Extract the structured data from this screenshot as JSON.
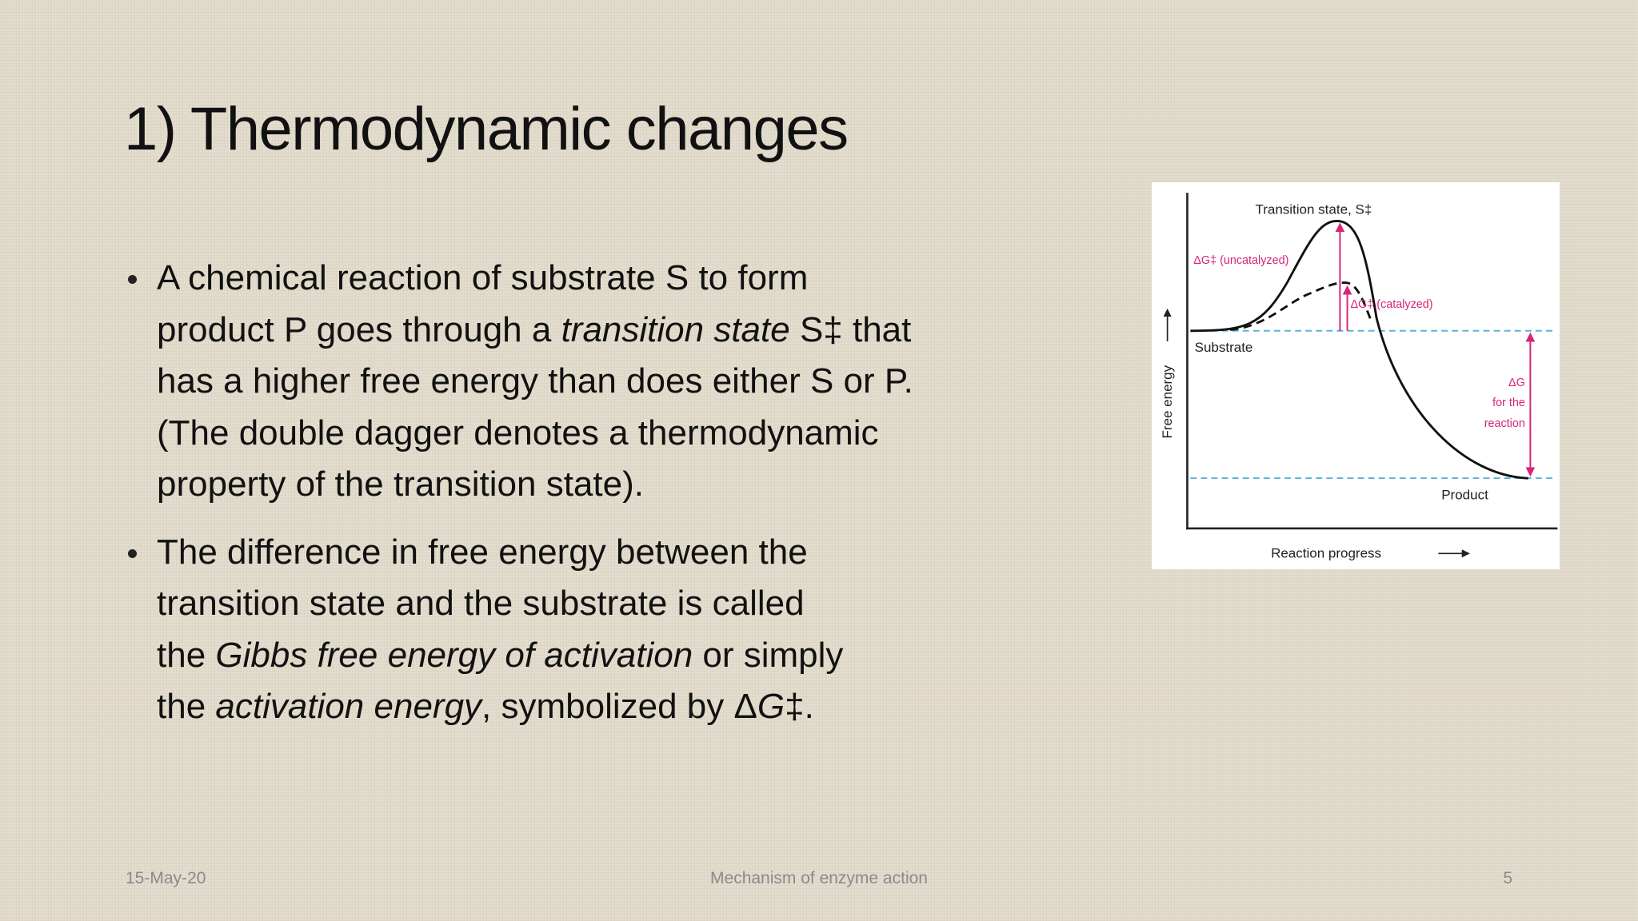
{
  "title": "1) Thermodynamic changes",
  "bullets": [
    {
      "lines": [
        [
          {
            "text": "A chemical reaction of substrate S to form"
          }
        ],
        [
          {
            "text": "product P goes through a "
          },
          {
            "text": "transition state",
            "italic": true
          },
          {
            "text": " S‡ that"
          }
        ],
        [
          {
            "text": "has a higher free energy than does either S or P."
          }
        ],
        [
          {
            "text": "(The double dagger denotes a thermodynamic"
          }
        ],
        [
          {
            "text": "property of the transition state)."
          }
        ]
      ]
    },
    {
      "lines": [
        [
          {
            "text": "The difference in free energy between the"
          }
        ],
        [
          {
            "text": "transition state and the substrate is called"
          }
        ],
        [
          {
            "text": "the "
          },
          {
            "text": "Gibbs free energy of activation",
            "italic": true
          },
          {
            "text": " or simply"
          }
        ],
        [
          {
            "text": "the "
          },
          {
            "text": "activation energy",
            "italic": true
          },
          {
            "text": ", symbolized by Δ"
          },
          {
            "text": "G",
            "italic": true
          },
          {
            "text": "‡."
          }
        ]
      ]
    }
  ],
  "figure": {
    "transition_state": "Transition state, S‡",
    "uncatalyzed": "ΔG‡ (uncatalyzed)",
    "catalyzed": "ΔG‡ (catalyzed)",
    "substrate": "Substrate",
    "y_axis": "Free energy",
    "delta_g": [
      "ΔG",
      "for the",
      "reaction"
    ],
    "product": "Product",
    "x_axis": "Reaction progress"
  },
  "footer": {
    "date": "15-May-20",
    "center": "Mechanism of enzyme action",
    "page": "5"
  }
}
